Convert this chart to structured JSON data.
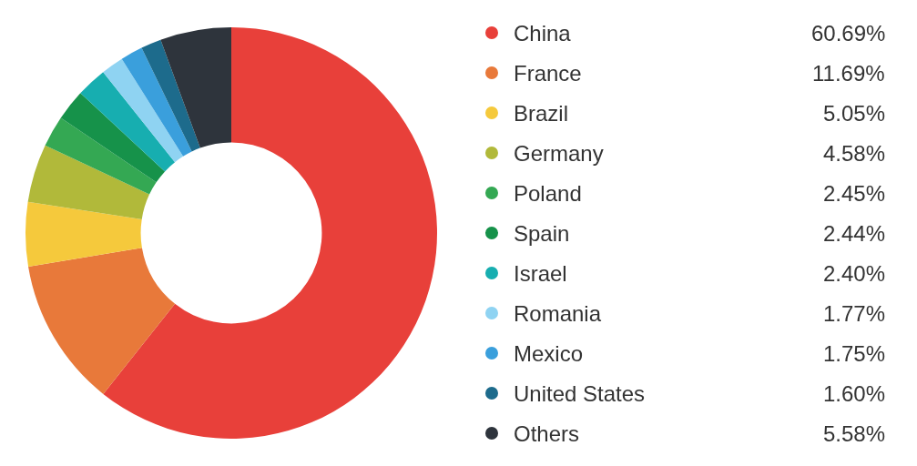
{
  "chart_data": {
    "type": "donut",
    "categories": [
      "China",
      "France",
      "Brazil",
      "Germany",
      "Poland",
      "Spain",
      "Israel",
      "Romania",
      "Mexico",
      "United States",
      "Others"
    ],
    "values": [
      60.69,
      11.69,
      5.05,
      4.58,
      2.45,
      2.44,
      2.4,
      1.77,
      1.75,
      1.6,
      5.58
    ],
    "value_labels": [
      "60.69%",
      "11.69%",
      "5.05%",
      "4.58%",
      "2.45%",
      "2.44%",
      "2.40%",
      "1.77%",
      "1.75%",
      "1.60%",
      "5.58%"
    ],
    "colors": [
      "#e8403a",
      "#e8793a",
      "#f5c93c",
      "#b1b93a",
      "#34a853",
      "#16924a",
      "#17aeb0",
      "#8fd3f2",
      "#3a9fdc",
      "#1d6b8c",
      "#2e343c"
    ],
    "legend": "right"
  }
}
